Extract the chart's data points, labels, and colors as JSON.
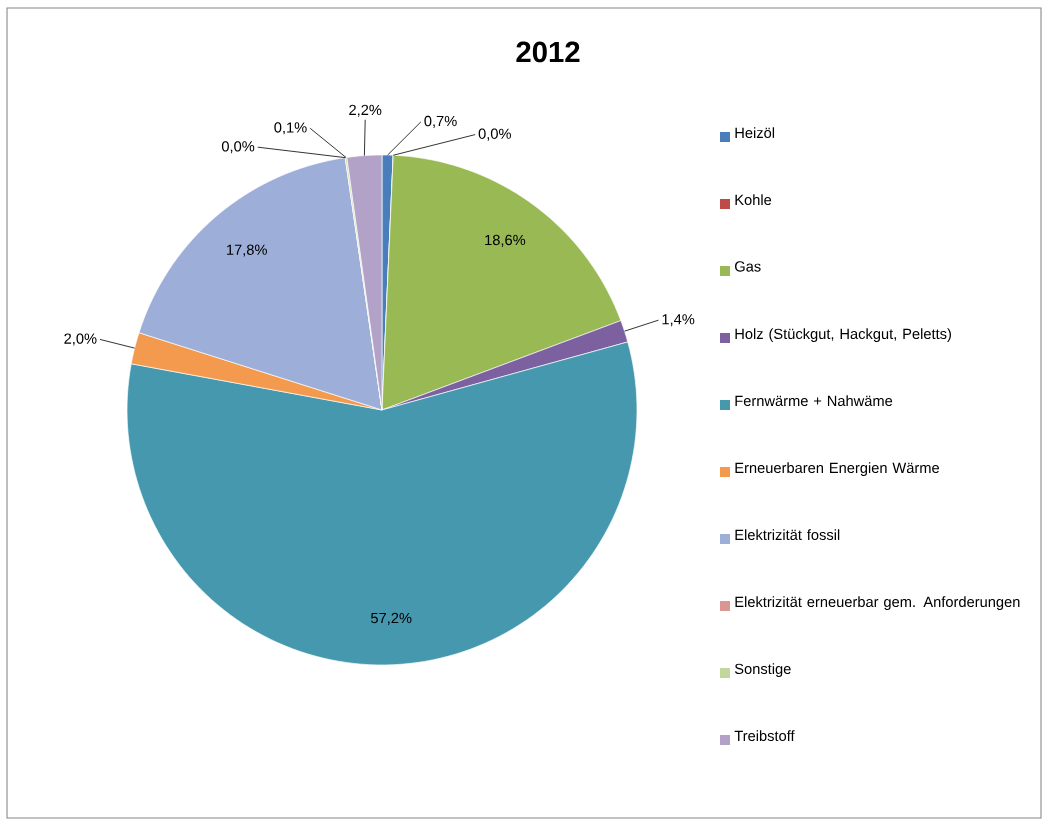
{
  "chart_data": {
    "type": "pie",
    "title": "2012",
    "categories": [
      "Heizöl",
      "Kohle",
      "Gas",
      "Holz (Stückgut, Hackgut, Peletts)",
      "Fernwärme + Nahwäme",
      "Erneuerbaren Energien Wärme",
      "Elektrizität fossil",
      "Elektrizität erneuerbar gem. Anforderungen",
      "Sonstige",
      "Treibstoff"
    ],
    "values": [
      0.7,
      0.0,
      18.6,
      1.4,
      57.2,
      2.0,
      17.8,
      0.0,
      0.1,
      2.2
    ],
    "value_labels": [
      "0,7%",
      "0,0%",
      "18,6%",
      "1,4%",
      "57,2%",
      "2,0%",
      "17,8%",
      "0,0%",
      "0,1%",
      "2,2%"
    ],
    "colors": [
      "#4a7ebb",
      "#be4b48",
      "#98b954",
      "#7d60a0",
      "#4698ae",
      "#f39a4e",
      "#9dafd8",
      "#d99694",
      "#c3d69b",
      "#b3a2c7"
    ],
    "legend": "right"
  }
}
